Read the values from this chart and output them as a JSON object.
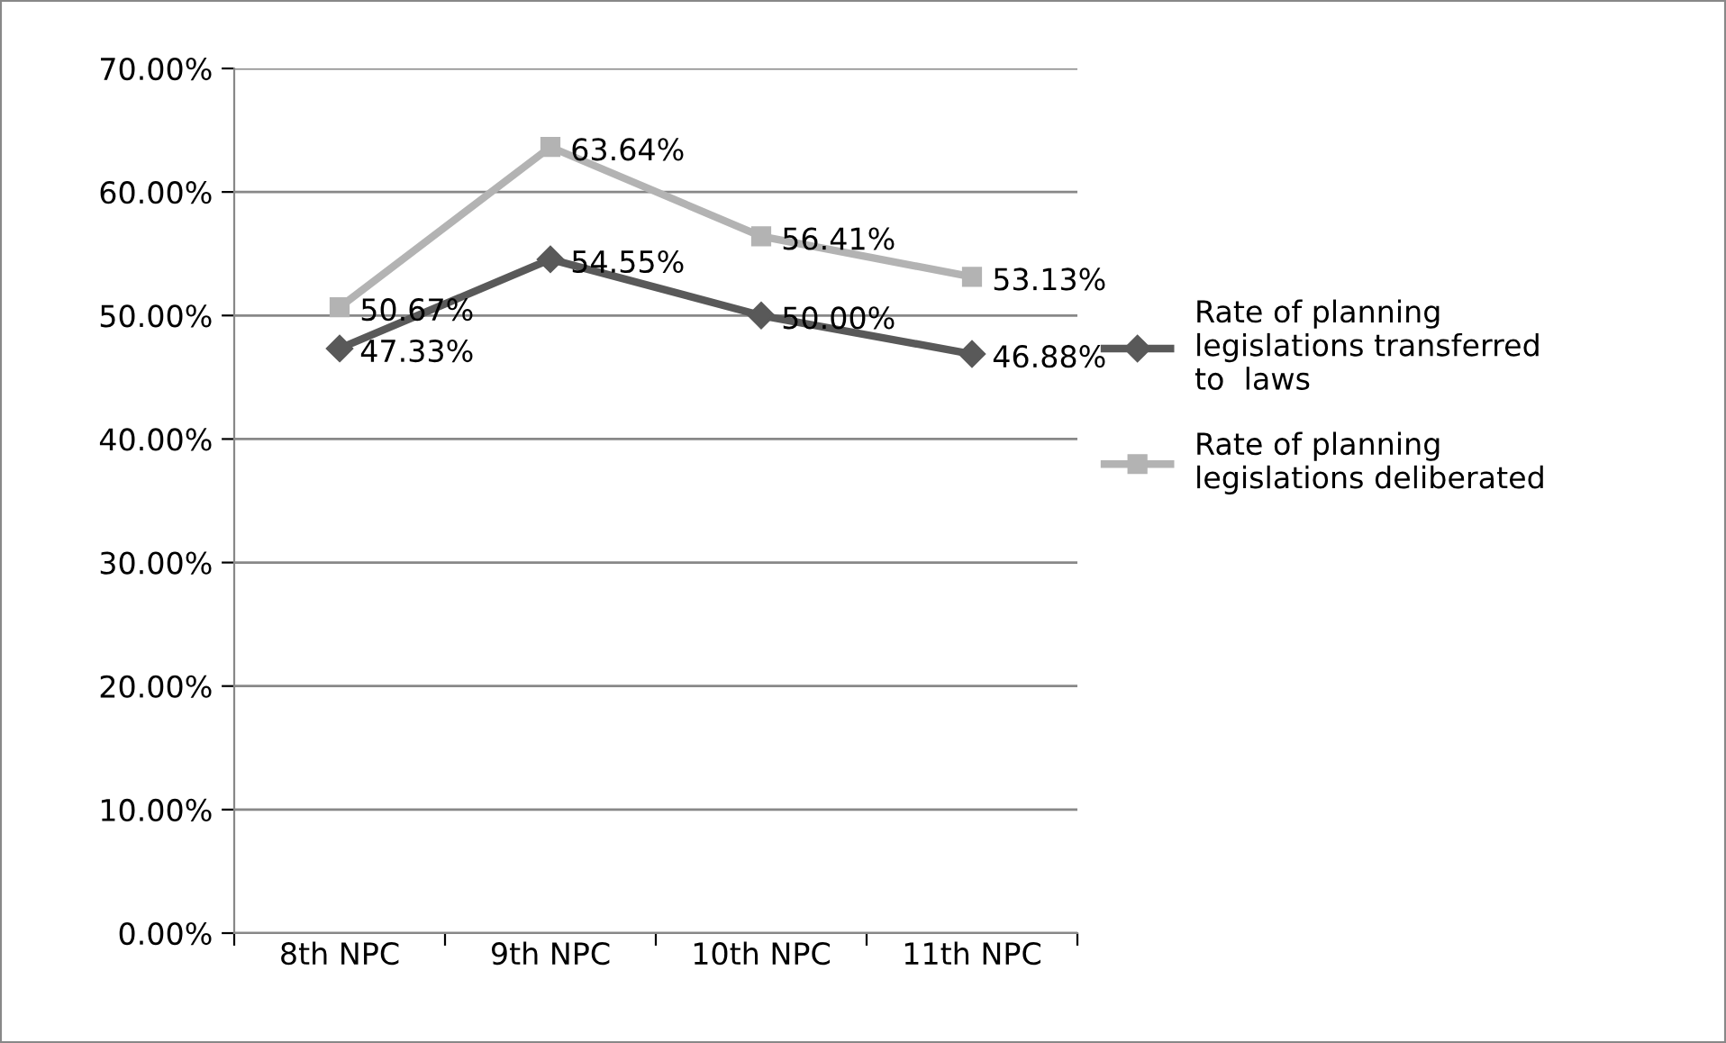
{
  "chart_data": {
    "type": "line",
    "categories": [
      "8th NPC",
      "9th NPC",
      "10th NPC",
      "11th NPC"
    ],
    "series": [
      {
        "name": "Rate of planning legislations transferred to  laws",
        "color": "#595959",
        "marker": "diamond",
        "values": [
          47.33,
          54.55,
          50.0,
          46.88
        ]
      },
      {
        "name": "Rate of planning legislations deliberated",
        "color": "#b3b3b3",
        "marker": "square",
        "values": [
          50.67,
          63.64,
          56.41,
          53.13
        ]
      }
    ],
    "ylim": [
      0,
      70
    ],
    "yticks": [
      {
        "value": 0,
        "label": "0.00%"
      },
      {
        "value": 10,
        "label": "10.00%"
      },
      {
        "value": 20,
        "label": "20.00%"
      },
      {
        "value": 30,
        "label": "30.00%"
      },
      {
        "value": 40,
        "label": "40.00%"
      },
      {
        "value": 50,
        "label": "50.00%"
      },
      {
        "value": 60,
        "label": "60.00%"
      },
      {
        "value": 70,
        "label": "70.00%"
      }
    ],
    "value_labels": [
      [
        "47.33%",
        "54.55%",
        "50.00%",
        "46.88%"
      ],
      [
        "50.67%",
        "63.64%",
        "56.41%",
        "53.13%"
      ]
    ],
    "grid": "y",
    "legend": "right",
    "line_style": "solid"
  }
}
